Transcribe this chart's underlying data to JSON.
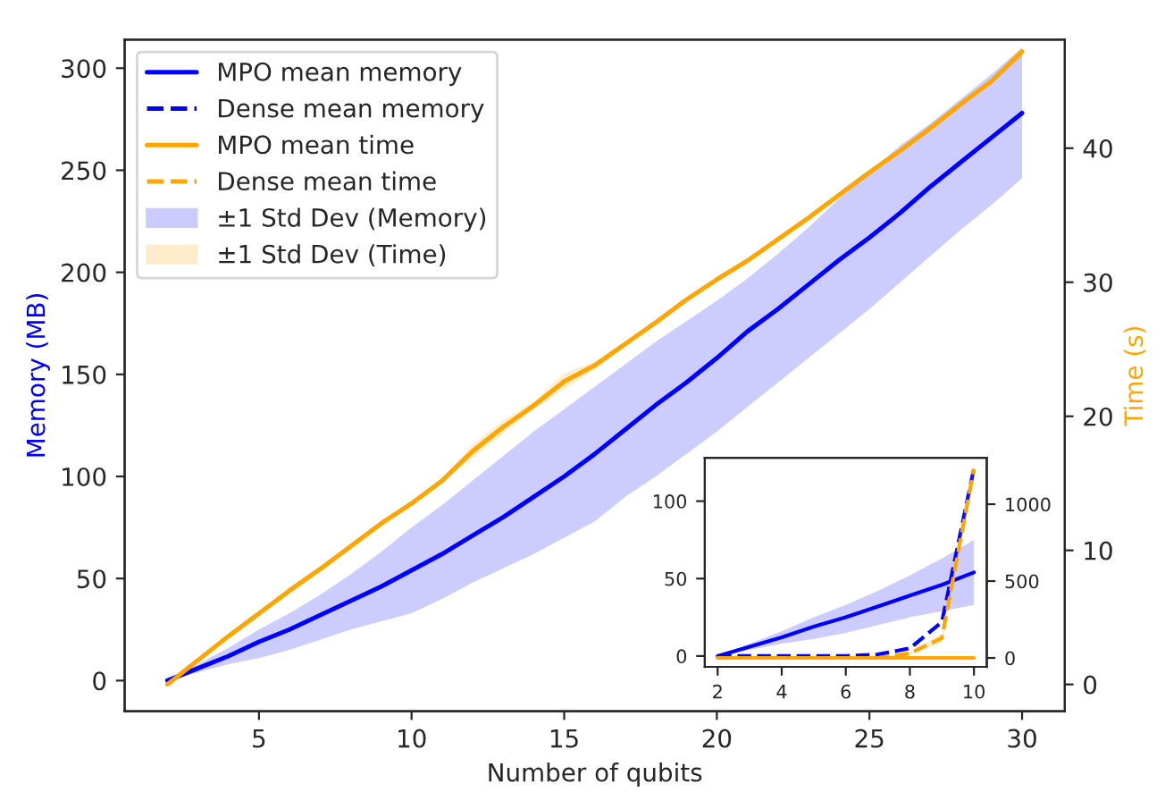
{
  "chart_data": [
    {
      "type": "line",
      "xlabel": "Number of qubits",
      "ylabel": "Memory (MB)",
      "y2label": "Time (s)",
      "xlim": [
        0.6,
        31.4
      ],
      "ylim": [
        -15,
        314
      ],
      "y2lim": [
        -2,
        48.1
      ],
      "xticks": [
        5,
        10,
        15,
        20,
        25,
        30
      ],
      "yticks": [
        0,
        50,
        100,
        150,
        200,
        250,
        300
      ],
      "y2ticks": [
        0,
        10,
        20,
        30,
        40
      ],
      "legend": "top left",
      "annotations": [
        "±1 Std Dev (Memory)",
        "±1 Std Dev (Time)"
      ],
      "x": [
        2,
        3,
        4,
        5,
        6,
        7,
        8,
        9,
        10,
        11,
        12,
        13,
        14,
        15,
        16,
        17,
        18,
        19,
        20,
        21,
        22,
        23,
        24,
        25,
        26,
        27,
        28,
        29,
        30
      ],
      "series": [
        {
          "name": "MPO mean memory",
          "color": "#0000ff",
          "line_style": "solid",
          "values": [
            0,
            6,
            12,
            19,
            25,
            32,
            39,
            46,
            54,
            62,
            71,
            80,
            90,
            100,
            111,
            123,
            135,
            146,
            158,
            171,
            182,
            194,
            206,
            217,
            229,
            242,
            254,
            266,
            278
          ],
          "lower": [
            0,
            4,
            8,
            11,
            15,
            20,
            25,
            29,
            33,
            40,
            48,
            55,
            62,
            70,
            78,
            90,
            100,
            111,
            122,
            134,
            146,
            158,
            170,
            182,
            195,
            208,
            221,
            233,
            246
          ],
          "upper": [
            0,
            8,
            16,
            25,
            33,
            42,
            52,
            63,
            75,
            86,
            98,
            110,
            122,
            133,
            144,
            155,
            166,
            176,
            186,
            197,
            209,
            222,
            236,
            249,
            262,
            273,
            285,
            297,
            310
          ]
        },
        {
          "name": "Dense mean memory",
          "color": "#0000ff",
          "line_style": "dashed",
          "values": [
            null,
            null,
            null,
            null,
            null,
            null,
            null,
            null,
            null,
            null,
            null,
            null,
            null,
            null,
            null,
            null,
            null,
            null,
            null,
            null,
            null,
            null,
            null,
            null,
            null,
            null,
            null,
            null,
            null
          ]
        },
        {
          "name": "MPO mean time",
          "axis": "y2",
          "color": "#ffa500",
          "line_style": "solid",
          "values": [
            0,
            1.8,
            3.6,
            5.3,
            7.0,
            8.6,
            10.3,
            12.0,
            13.5,
            15.2,
            17.4,
            19.2,
            20.8,
            22.6,
            23.8,
            25.4,
            27.0,
            28.7,
            30.2,
            31.6,
            33.2,
            34.8,
            36.5,
            38.2,
            39.8,
            41.5,
            43.3,
            45.0,
            47.2
          ],
          "lower": [
            0,
            1.6,
            3.4,
            5.1,
            6.8,
            8.4,
            10.1,
            11.8,
            13.3,
            15.0,
            16.9,
            18.7,
            20.5,
            22.0,
            23.5,
            25.2,
            26.8,
            28.5,
            30.0,
            31.4,
            33.0,
            34.6,
            36.3,
            38.0,
            39.6,
            41.3,
            43.1,
            44.8,
            46.8
          ],
          "upper": [
            0,
            2.0,
            3.8,
            5.5,
            7.2,
            8.8,
            10.5,
            12.2,
            13.7,
            15.4,
            17.9,
            19.7,
            21.1,
            23.2,
            24.1,
            25.6,
            27.2,
            28.9,
            30.4,
            31.8,
            33.4,
            35.0,
            36.7,
            38.4,
            40.0,
            41.7,
            43.5,
            45.2,
            47.6
          ]
        },
        {
          "name": "Dense mean time",
          "axis": "y2",
          "color": "#ffa500",
          "line_style": "dashed",
          "values": [
            null,
            null,
            null,
            null,
            null,
            null,
            null,
            null,
            null,
            null,
            null,
            null,
            null,
            null,
            null,
            null,
            null,
            null,
            null,
            null,
            null,
            null,
            null,
            null,
            null,
            null,
            null,
            null,
            null
          ]
        }
      ]
    },
    {
      "type": "line",
      "xlim": [
        1.6,
        10.4
      ],
      "ylim": [
        -7,
        128
      ],
      "y2lim": [
        -58,
        1302
      ],
      "xticks": [
        2,
        4,
        6,
        8,
        10
      ],
      "yticks": [
        0,
        50,
        100
      ],
      "y2ticks": [
        0,
        500,
        1000
      ],
      "x": [
        2,
        3,
        4,
        5,
        6,
        7,
        8,
        9,
        10
      ],
      "series": [
        {
          "color": "#0000ff",
          "line_style": "solid",
          "values": [
            0,
            6,
            12,
            19,
            25,
            32,
            39,
            46,
            54
          ],
          "lower": [
            0,
            4,
            8,
            11,
            15,
            20,
            25,
            29,
            33
          ],
          "upper": [
            0,
            8,
            16,
            25,
            33,
            42,
            52,
            63,
            75
          ]
        },
        {
          "axis": "y2",
          "color": "#ffa500",
          "line_style": "solid",
          "values": [
            0,
            0,
            0,
            0,
            0,
            0,
            0,
            0,
            0
          ]
        },
        {
          "color": "#0000ff",
          "line_style": "dashed",
          "values": [
            0,
            0,
            0,
            0,
            0,
            1,
            5,
            22,
            121
          ]
        },
        {
          "axis": "y2",
          "color": "#ffa500",
          "line_style": "dashed",
          "values": [
            0,
            0,
            0,
            0,
            0,
            0,
            30,
            130,
            1230
          ],
          "lower": [
            0,
            0,
            0,
            0,
            0,
            0,
            20,
            100,
            1200
          ],
          "upper": [
            0,
            0,
            0,
            0,
            0,
            0,
            40,
            160,
            1260
          ]
        }
      ]
    }
  ]
}
